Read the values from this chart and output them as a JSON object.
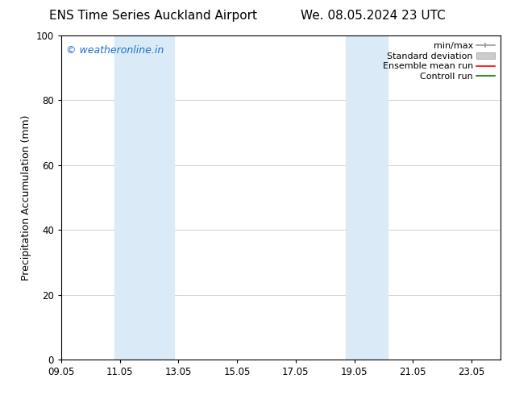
{
  "title_left": "ENS Time Series Auckland Airport",
  "title_right": "We. 08.05.2024 23 UTC",
  "ylabel": "Precipitation Accumulation (mm)",
  "xlim": [
    9.05,
    24.05
  ],
  "ylim": [
    0,
    100
  ],
  "yticks": [
    0,
    20,
    40,
    60,
    80,
    100
  ],
  "xtick_labels": [
    "09.05",
    "11.05",
    "13.05",
    "15.05",
    "17.05",
    "19.05",
    "21.05",
    "23.05"
  ],
  "xtick_positions": [
    9.05,
    11.05,
    13.05,
    15.05,
    17.05,
    19.05,
    21.05,
    23.05
  ],
  "shaded_bands": [
    {
      "x_start": 10.85,
      "x_end": 12.9,
      "color": "#daeaf7",
      "alpha": 1.0
    },
    {
      "x_start": 18.75,
      "x_end": 20.2,
      "color": "#daeaf7",
      "alpha": 1.0
    }
  ],
  "watermark_text": "© weatheronline.in",
  "watermark_color": "#1a6ec7",
  "legend_items": [
    {
      "label": "min/max",
      "color": "#999999",
      "lw": 1.2,
      "style": "minmax"
    },
    {
      "label": "Standard deviation",
      "color": "#cccccc",
      "lw": 5,
      "style": "stddev"
    },
    {
      "label": "Ensemble mean run",
      "color": "#ff0000",
      "lw": 1.2,
      "style": "line"
    },
    {
      "label": "Controll run",
      "color": "#008000",
      "lw": 1.2,
      "style": "line"
    }
  ],
  "bg_color": "#ffffff",
  "plot_bg_color": "#ffffff",
  "title_fontsize": 11,
  "tick_fontsize": 8.5,
  "ylabel_fontsize": 9,
  "watermark_fontsize": 9,
  "legend_fontsize": 8
}
